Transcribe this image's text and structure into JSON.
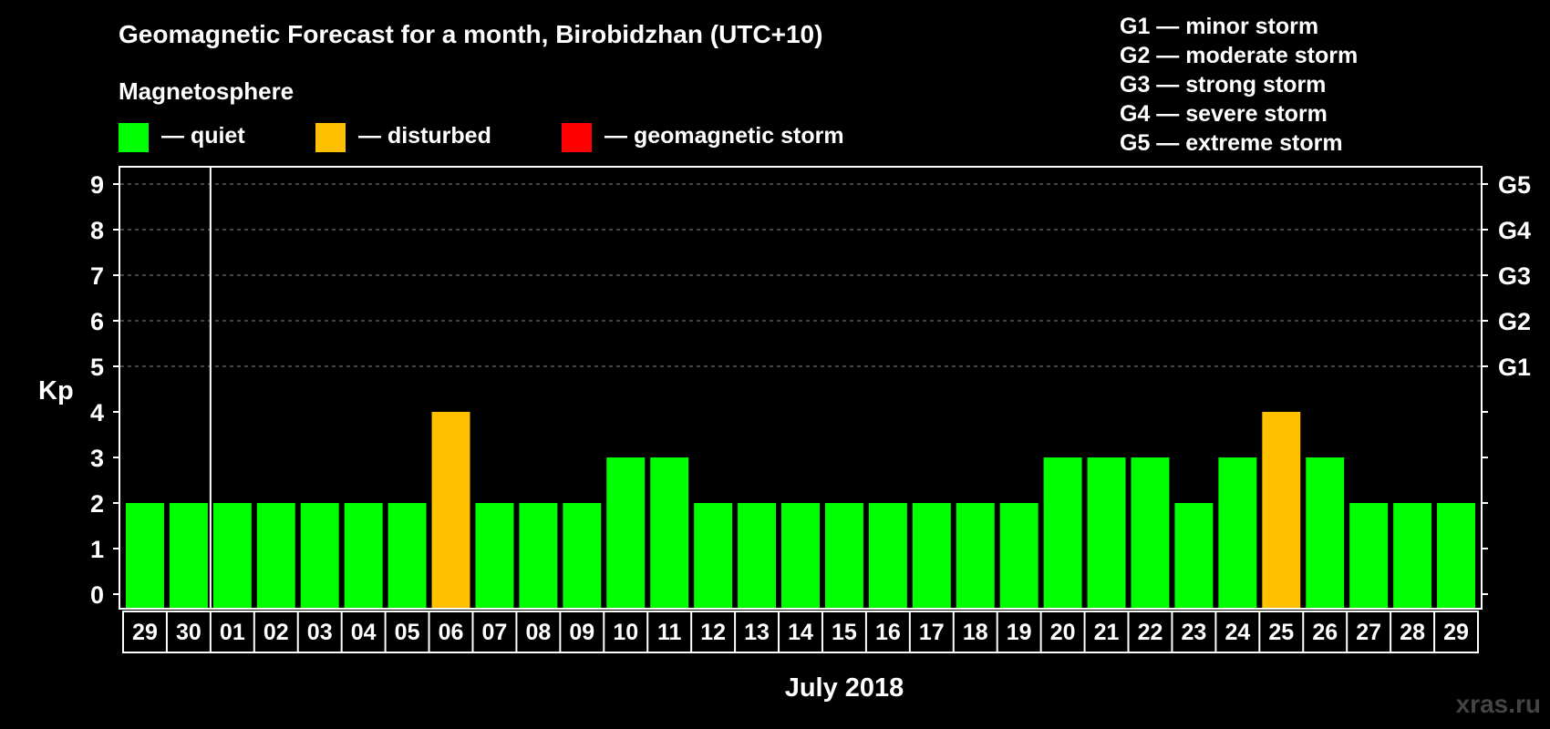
{
  "chart_data": {
    "type": "bar",
    "title": "Geomagnetic Forecast for a month, Birobidzhan (UTC+10)",
    "subtitle": "Magnetosphere",
    "ylabel": "Kp",
    "xlabel": "July 2018",
    "ylim": [
      0,
      9
    ],
    "yticks": [
      "0",
      "1",
      "2",
      "3",
      "4",
      "5",
      "6",
      "7",
      "8",
      "9"
    ],
    "g_levels": [
      {
        "label": "G1",
        "kp": 5
      },
      {
        "label": "G2",
        "kp": 6
      },
      {
        "label": "G3",
        "kp": 7
      },
      {
        "label": "G4",
        "kp": 8
      },
      {
        "label": "G5",
        "kp": 9
      }
    ],
    "g_legend": [
      "G1 — minor storm",
      "G2 — moderate storm",
      "G3 — strong storm",
      "G4 — severe storm",
      "G5 — extreme storm"
    ],
    "legend": [
      {
        "label": "— quiet",
        "color": "#00ff00"
      },
      {
        "label": "— disturbed",
        "color": "#ffc000"
      },
      {
        "label": "— geomagnetic storm",
        "color": "#ff0000"
      }
    ],
    "categories": [
      "29",
      "30",
      "01",
      "02",
      "03",
      "04",
      "05",
      "06",
      "07",
      "08",
      "09",
      "10",
      "11",
      "12",
      "13",
      "14",
      "15",
      "16",
      "17",
      "18",
      "19",
      "20",
      "21",
      "22",
      "23",
      "24",
      "25",
      "26",
      "27",
      "28",
      "29"
    ],
    "values": [
      2,
      2,
      2,
      2,
      2,
      2,
      2,
      4,
      2,
      2,
      2,
      3,
      3,
      2,
      2,
      2,
      2,
      2,
      2,
      2,
      2,
      3,
      3,
      3,
      2,
      3,
      4,
      3,
      2,
      2,
      2
    ],
    "month_start_index": 2,
    "grid": "dashed at G levels"
  },
  "watermark": "xras.ru"
}
